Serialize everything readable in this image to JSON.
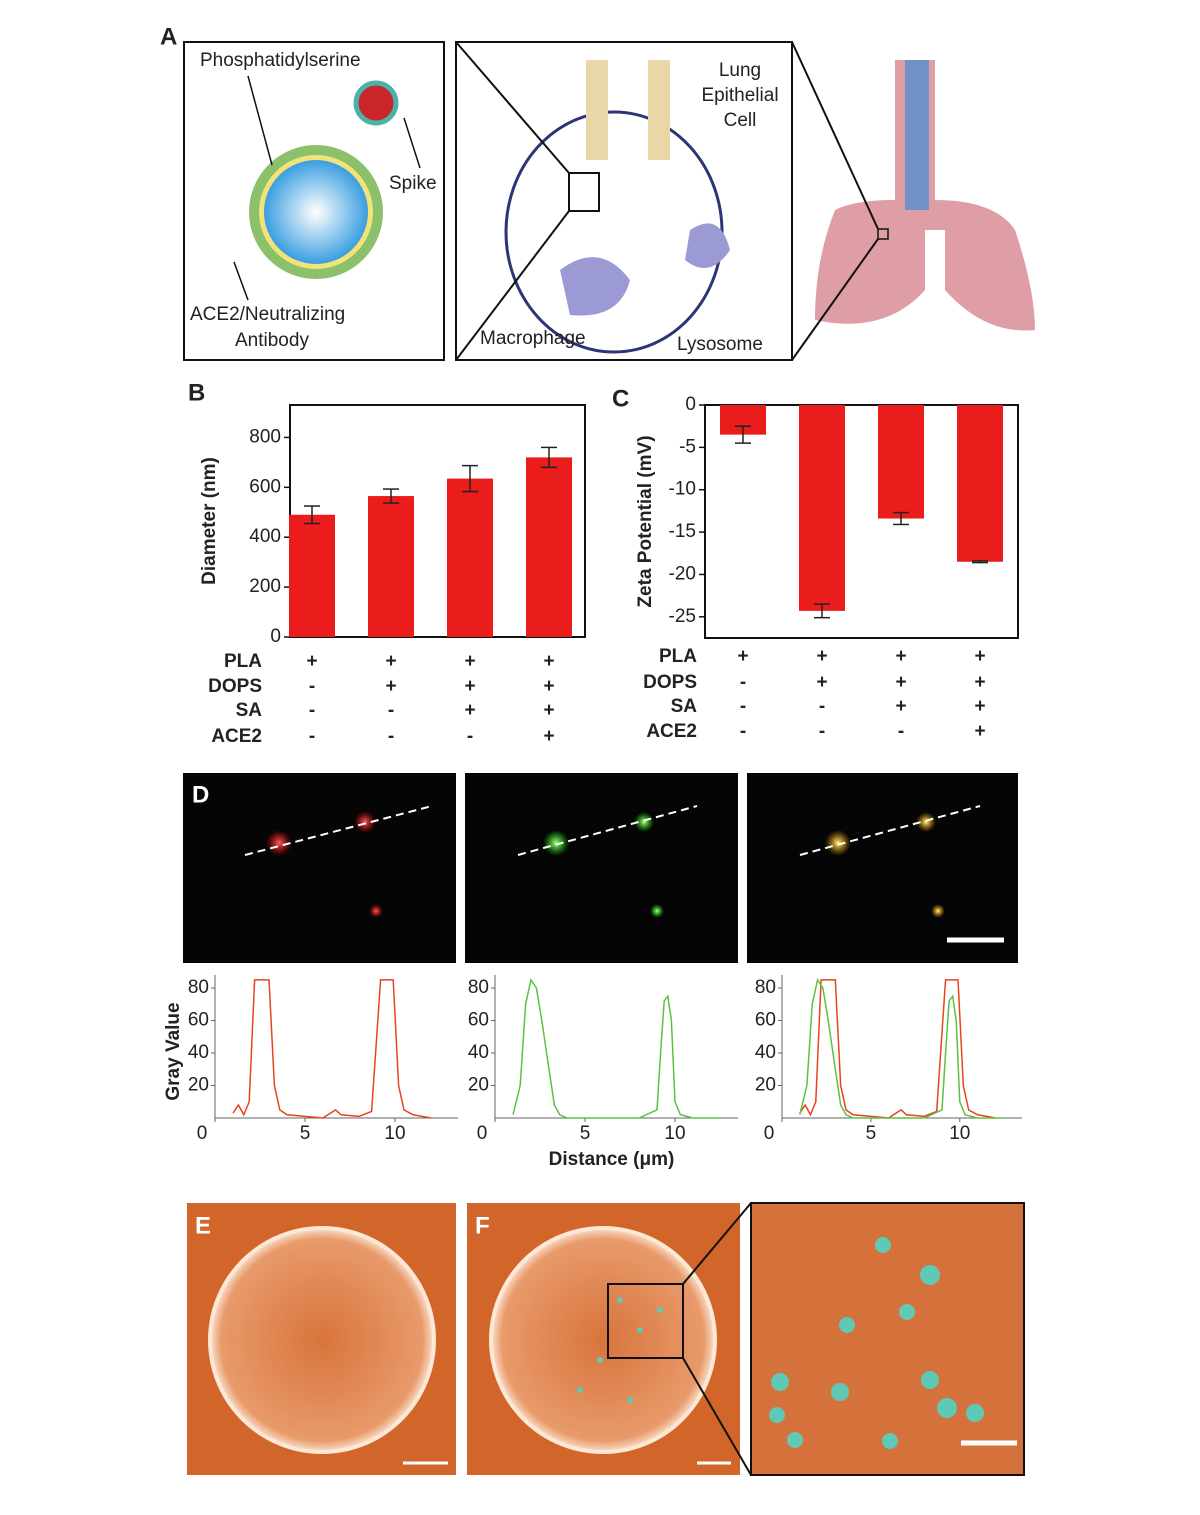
{
  "figure": {
    "panel_labels": [
      "A",
      "B",
      "C",
      "D",
      "E",
      "F"
    ]
  },
  "diagram": {
    "phosphatidylserine": "Phosphatidylserine",
    "spike": "Spike",
    "antibody": [
      "ACE2/Neutralizing",
      "Antibody"
    ],
    "lung_cell": [
      "Lung",
      "Epithelial",
      "Cell"
    ],
    "macrophage": "Macrophage",
    "lysosome": "Lysosome"
  },
  "chart_data": [
    {
      "type": "bar",
      "y_label": "Diameter (nm)",
      "values": [
        490,
        565,
        635,
        720
      ],
      "errors": [
        35,
        28,
        52,
        40
      ],
      "color": "#ea1c1c",
      "ylim": [
        0,
        930
      ],
      "yticks": [
        0,
        200,
        400,
        600,
        800
      ],
      "conditions": [
        {
          "name": "PLA",
          "marks": [
            "+",
            "+",
            "+",
            "+"
          ]
        },
        {
          "name": "DOPS",
          "marks": [
            "-",
            "+",
            "+",
            "+"
          ]
        },
        {
          "name": "SA",
          "marks": [
            "-",
            "-",
            "+",
            "+"
          ]
        },
        {
          "name": "ACE2",
          "marks": [
            "-",
            "-",
            "-",
            "+"
          ]
        }
      ]
    },
    {
      "type": "bar",
      "y_label": "Zeta Potential (mV)",
      "values": [
        -3.5,
        -24.3,
        -13.4,
        -18.5
      ],
      "errors": [
        1,
        0.8,
        0.7,
        0.1
      ],
      "color": "#ea1c1c",
      "ylim": [
        -27.5,
        0
      ],
      "yticks": [
        0,
        -5,
        -10,
        -15,
        -20,
        -25
      ],
      "conditions": [
        {
          "name": "PLA",
          "marks": [
            "+",
            "+",
            "+",
            "+"
          ]
        },
        {
          "name": "DOPS",
          "marks": [
            "-",
            "+",
            "+",
            "+"
          ]
        },
        {
          "name": "SA",
          "marks": [
            "-",
            "-",
            "+",
            "+"
          ]
        },
        {
          "name": "ACE2",
          "marks": [
            "-",
            "-",
            "-",
            "+"
          ]
        }
      ]
    },
    {
      "type": "line",
      "y_label": "Gray Value",
      "xlim": [
        0,
        13.5
      ],
      "xticks": [
        0,
        5,
        10
      ],
      "ylim": [
        0,
        88
      ],
      "yticks": [
        20,
        40,
        60,
        80
      ],
      "series": [
        {
          "color": "#e8431d",
          "x": [
            1,
            1.3,
            1.6,
            1.9,
            2.2,
            3.0,
            3.3,
            3.6,
            4,
            5,
            6,
            6.7,
            7,
            8,
            8.7,
            9.2,
            9.9,
            10.2,
            10.5,
            11,
            12
          ],
          "values": [
            3,
            8,
            2,
            10,
            85,
            85,
            20,
            5,
            2,
            1,
            0,
            5,
            2,
            1,
            4,
            85,
            85,
            20,
            5,
            2,
            0
          ]
        }
      ]
    },
    {
      "type": "line",
      "x_label": "Distance (μm)",
      "xlim": [
        0,
        13.5
      ],
      "xticks": [
        0,
        5,
        10
      ],
      "ylim": [
        0,
        88
      ],
      "yticks": [
        20,
        40,
        60,
        80
      ],
      "series": [
        {
          "color": "#5cc043",
          "x": [
            1,
            1.4,
            1.7,
            2.0,
            2.3,
            2.6,
            3.0,
            3.3,
            3.6,
            4,
            6,
            8,
            9,
            9.2,
            9.4,
            9.6,
            9.8,
            10,
            10.3,
            11,
            12.5
          ],
          "values": [
            2,
            20,
            70,
            85,
            80,
            60,
            30,
            8,
            2,
            0,
            0,
            0,
            5,
            40,
            72,
            75,
            60,
            10,
            2,
            0,
            0
          ]
        }
      ]
    },
    {
      "type": "line",
      "xlim": [
        0,
        13.5
      ],
      "xticks": [
        0,
        5,
        10
      ],
      "ylim": [
        0,
        88
      ],
      "yticks": [
        20,
        40,
        60,
        80
      ],
      "series": [
        {
          "color": "#e8431d",
          "x": [
            1,
            1.3,
            1.6,
            1.9,
            2.2,
            3.0,
            3.3,
            3.6,
            4,
            5,
            6,
            6.7,
            7,
            8,
            8.7,
            9.2,
            9.9,
            10.2,
            10.5,
            11,
            12
          ],
          "values": [
            3,
            8,
            2,
            10,
            85,
            85,
            20,
            5,
            2,
            1,
            0,
            5,
            2,
            1,
            4,
            85,
            85,
            20,
            5,
            2,
            0
          ]
        },
        {
          "color": "#5cc043",
          "x": [
            1,
            1.4,
            1.7,
            2.0,
            2.3,
            2.6,
            3.0,
            3.3,
            3.6,
            4,
            6,
            8,
            9,
            9.2,
            9.4,
            9.6,
            9.8,
            10,
            10.3,
            11,
            12.5
          ],
          "values": [
            2,
            20,
            70,
            85,
            80,
            60,
            30,
            8,
            2,
            0,
            0,
            0,
            5,
            40,
            72,
            75,
            60,
            10,
            2,
            0,
            0
          ]
        }
      ]
    }
  ]
}
